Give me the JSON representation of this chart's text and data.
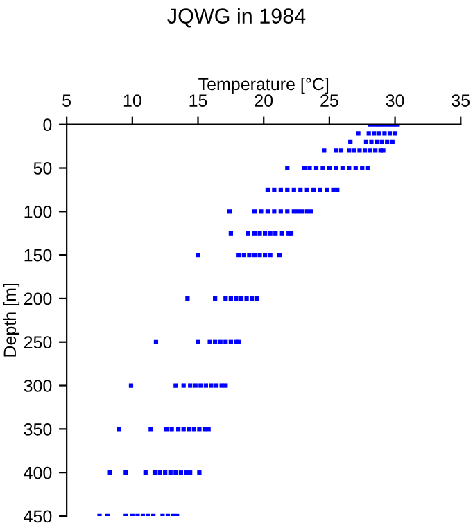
{
  "chart_data": {
    "type": "scatter",
    "title": "JQWG in 1984",
    "xlabel": "Temperature [°C]",
    "ylabel": "Depth [m]",
    "xlim": [
      5,
      35
    ],
    "xticks": [
      5,
      10,
      15,
      20,
      25,
      30,
      35
    ],
    "ylim": [
      450,
      0
    ],
    "yticks": [
      0,
      50,
      100,
      150,
      200,
      250,
      300,
      350,
      400,
      450
    ],
    "marker": "square",
    "grid": false,
    "legend": false,
    "series": [
      {
        "color": "#0000ff",
        "x": [
          28.1,
          28.4,
          28.7,
          29.0,
          29.3,
          29.6,
          29.9,
          30.2,
          27.2,
          28.0,
          28.4,
          28.8,
          29.2,
          29.6,
          30.0,
          26.6,
          27.8,
          28.2,
          28.6,
          29.0,
          29.4,
          29.8,
          24.6,
          25.5,
          25.9,
          26.5,
          26.9,
          27.3,
          27.7,
          28.1,
          28.5,
          28.9,
          29.1,
          21.8,
          23.1,
          23.5,
          24.0,
          24.5,
          25.0,
          25.5,
          26.0,
          26.5,
          27.0,
          27.5,
          27.9,
          20.3,
          20.8,
          21.3,
          21.8,
          22.3,
          22.8,
          23.3,
          23.8,
          24.3,
          24.8,
          25.3,
          25.6,
          17.4,
          19.3,
          19.8,
          20.3,
          20.8,
          21.3,
          21.8,
          22.3,
          22.6,
          22.9,
          23.3,
          23.6,
          17.5,
          18.8,
          19.3,
          19.7,
          20.1,
          20.5,
          20.9,
          21.4,
          21.9,
          22.1,
          15.0,
          18.1,
          18.5,
          18.9,
          19.3,
          19.7,
          20.1,
          20.5,
          21.2,
          14.2,
          16.3,
          17.1,
          17.5,
          17.9,
          18.3,
          18.7,
          19.1,
          19.5,
          11.8,
          15.0,
          15.9,
          16.3,
          16.7,
          17.1,
          17.5,
          17.9,
          18.1,
          9.9,
          13.3,
          13.9,
          14.4,
          14.8,
          15.2,
          15.6,
          16.0,
          16.4,
          16.8,
          17.1,
          9.0,
          11.4,
          12.6,
          13.0,
          13.5,
          13.9,
          14.3,
          14.7,
          15.1,
          15.5,
          15.8,
          8.3,
          9.5,
          11.0,
          11.7,
          12.1,
          12.5,
          12.9,
          13.3,
          13.7,
          14.1,
          14.4,
          15.1,
          7.5,
          8.1,
          9.5,
          10.0,
          10.4,
          10.8,
          11.2,
          11.6,
          12.3,
          12.7,
          13.1,
          13.4
        ],
        "values": [
          0,
          0,
          0,
          0,
          0,
          0,
          0,
          0,
          10,
          10,
          10,
          10,
          10,
          10,
          10,
          20,
          20,
          20,
          20,
          20,
          20,
          20,
          30,
          30,
          30,
          30,
          30,
          30,
          30,
          30,
          30,
          30,
          30,
          50,
          50,
          50,
          50,
          50,
          50,
          50,
          50,
          50,
          50,
          50,
          50,
          75,
          75,
          75,
          75,
          75,
          75,
          75,
          75,
          75,
          75,
          75,
          75,
          100,
          100,
          100,
          100,
          100,
          100,
          100,
          100,
          100,
          100,
          100,
          100,
          125,
          125,
          125,
          125,
          125,
          125,
          125,
          125,
          125,
          125,
          150,
          150,
          150,
          150,
          150,
          150,
          150,
          150,
          150,
          200,
          200,
          200,
          200,
          200,
          200,
          200,
          200,
          200,
          250,
          250,
          250,
          250,
          250,
          250,
          250,
          250,
          250,
          300,
          300,
          300,
          300,
          300,
          300,
          300,
          300,
          300,
          300,
          300,
          350,
          350,
          350,
          350,
          350,
          350,
          350,
          350,
          350,
          350,
          350,
          400,
          400,
          400,
          400,
          400,
          400,
          400,
          400,
          400,
          400,
          400,
          400,
          450,
          450,
          450,
          450,
          450,
          450,
          450,
          450,
          450,
          450,
          450,
          450
        ]
      }
    ]
  }
}
